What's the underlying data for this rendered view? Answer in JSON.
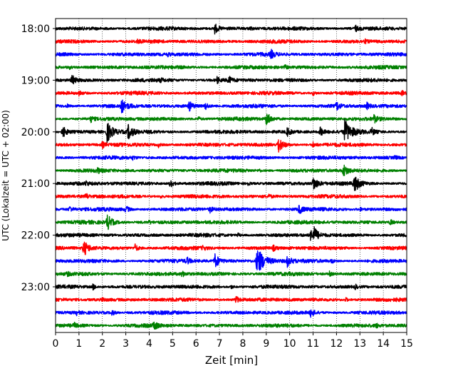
{
  "chart_data": {
    "type": "line",
    "title": "",
    "xlabel": "Zeit  [min]",
    "ylabel": "UTC (Lokalzeit = UTC + 02:00)",
    "xlim": [
      0,
      15
    ],
    "x_ticks": [
      "0",
      "1",
      "2",
      "3",
      "4",
      "5",
      "6",
      "7",
      "8",
      "9",
      "10",
      "11",
      "12",
      "13",
      "14",
      "15"
    ],
    "y_tick_labels": [
      "18:00",
      "19:00",
      "20:00",
      "21:00",
      "22:00",
      "23:00"
    ],
    "grid": "vertical-dotted",
    "trace_interval_minutes": 15,
    "color_cycle": [
      "#000000",
      "#ff0000",
      "#0000ff",
      "#008000"
    ],
    "traces": [
      {
        "start": "18:00",
        "events": [
          [
            6.8,
            7
          ],
          [
            12.8,
            4.5
          ],
          [
            8.3,
            2.5
          ]
        ]
      },
      {
        "start": "18:15",
        "events": [
          [
            13.2,
            2.5
          ],
          [
            3.5,
            1.8
          ]
        ]
      },
      {
        "start": "18:30",
        "events": [
          [
            9.2,
            5.5
          ],
          [
            4.8,
            2
          ]
        ]
      },
      {
        "start": "18:45",
        "events": [
          [
            9.8,
            2.5
          ],
          [
            0.6,
            2
          ]
        ]
      },
      {
        "start": "19:00",
        "events": [
          [
            0.7,
            7
          ],
          [
            7.4,
            5
          ],
          [
            6.9,
            4
          ],
          [
            4.5,
            2
          ]
        ]
      },
      {
        "start": "19:15",
        "events": [
          [
            1.0,
            4
          ],
          [
            11.0,
            3
          ],
          [
            14.8,
            2.5
          ]
        ]
      },
      {
        "start": "19:30",
        "events": [
          [
            2.8,
            10
          ],
          [
            5.7,
            7
          ],
          [
            6.4,
            5
          ],
          [
            12.0,
            6
          ],
          [
            13.3,
            4
          ],
          [
            0.5,
            2
          ]
        ]
      },
      {
        "start": "19:45",
        "events": [
          [
            9.0,
            10
          ],
          [
            1.5,
            4
          ],
          [
            13.6,
            5
          ],
          [
            6.1,
            3
          ]
        ]
      },
      {
        "start": "20:00",
        "events": [
          [
            0.3,
            8
          ],
          [
            2.2,
            14
          ],
          [
            3.1,
            10
          ],
          [
            9.9,
            6
          ],
          [
            11.3,
            7
          ],
          [
            12.35,
            16
          ],
          [
            13.5,
            5
          ]
        ]
      },
      {
        "start": "20:15",
        "events": [
          [
            9.5,
            11
          ],
          [
            2.0,
            4
          ],
          [
            4.4,
            3
          ],
          [
            11.0,
            3.5
          ]
        ]
      },
      {
        "start": "20:30",
        "events": [
          [
            14.5,
            2.5
          ],
          [
            3.3,
            2
          ]
        ]
      },
      {
        "start": "20:45",
        "events": [
          [
            12.3,
            9
          ],
          [
            1.8,
            3
          ],
          [
            8.7,
            2
          ]
        ]
      },
      {
        "start": "21:00",
        "events": [
          [
            11.0,
            10
          ],
          [
            12.75,
            12
          ],
          [
            4.9,
            6
          ],
          [
            1.3,
            3
          ],
          [
            8.2,
            3
          ]
        ]
      },
      {
        "start": "21:15",
        "events": [
          [
            1.3,
            4
          ],
          [
            4.5,
            2.5
          ],
          [
            9.1,
            3
          ]
        ]
      },
      {
        "start": "21:30",
        "events": [
          [
            0.6,
            4
          ],
          [
            3.0,
            5
          ],
          [
            6.6,
            4
          ],
          [
            10.4,
            6
          ],
          [
            13.0,
            2.5
          ]
        ]
      },
      {
        "start": "21:45",
        "events": [
          [
            2.2,
            11
          ],
          [
            14.3,
            4
          ],
          [
            4.0,
            2
          ]
        ]
      },
      {
        "start": "22:00",
        "events": [
          [
            10.9,
            9
          ],
          [
            11.05,
            8
          ],
          [
            7.8,
            2.5
          ]
        ]
      },
      {
        "start": "22:15",
        "events": [
          [
            1.2,
            11
          ],
          [
            3.4,
            5
          ],
          [
            6.3,
            3
          ],
          [
            9.3,
            3.5
          ]
        ]
      },
      {
        "start": "22:30",
        "events": [
          [
            8.6,
            20
          ],
          [
            6.8,
            10
          ],
          [
            9.9,
            7
          ],
          [
            5.6,
            5
          ],
          [
            11.8,
            3
          ]
        ]
      },
      {
        "start": "22:45",
        "events": [
          [
            5.4,
            4
          ],
          [
            11.7,
            3
          ],
          [
            0.5,
            2
          ]
        ]
      },
      {
        "start": "23:00",
        "events": [
          [
            1.6,
            4
          ],
          [
            12.8,
            3
          ],
          [
            7.5,
            2.5
          ]
        ]
      },
      {
        "start": "23:15",
        "events": [
          [
            7.7,
            5
          ],
          [
            2.0,
            3
          ],
          [
            12.4,
            2.5
          ]
        ]
      },
      {
        "start": "23:30",
        "events": [
          [
            10.9,
            6
          ],
          [
            2.4,
            4
          ],
          [
            0.9,
            2.5
          ]
        ]
      },
      {
        "start": "23:45",
        "events": [
          [
            4.2,
            6
          ],
          [
            0.8,
            3
          ],
          [
            13.7,
            2.5
          ]
        ]
      }
    ]
  }
}
